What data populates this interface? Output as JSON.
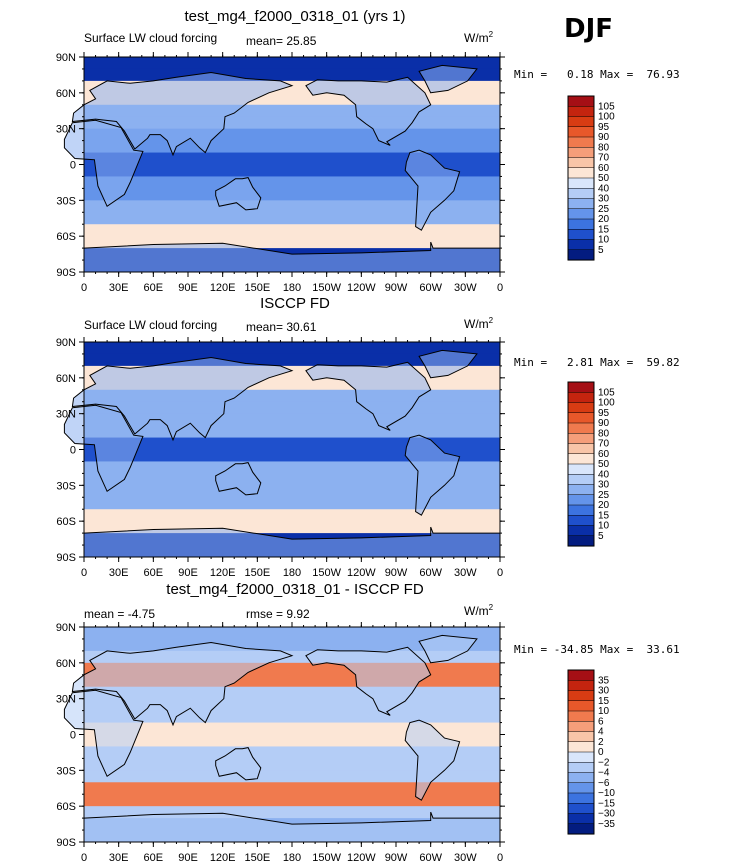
{
  "season": "DJF",
  "panels": [
    {
      "title": "test_mg4_f2000_0318_01 (yrs 1)",
      "left_label": "Surface LW cloud forcing",
      "stat1": "mean=  25.85",
      "stat2": "",
      "units": "W/m",
      "units_exp": "2",
      "minmax": "Min =   0.18 Max =  76.93",
      "colorbar": {
        "labels": [
          "105",
          "100",
          "95",
          "90",
          "80",
          "70",
          "60",
          "50",
          "40",
          "30",
          "25",
          "20",
          "15",
          "10",
          "5"
        ],
        "colors": [
          "#a50f15",
          "#c4240f",
          "#d83c13",
          "#e8582a",
          "#f07a4e",
          "#f59e7a",
          "#f8c5a8",
          "#fce6d6",
          "#d9e6fb",
          "#b4cdf6",
          "#8cb1f0",
          "#6494ea",
          "#3c73e0",
          "#1f50cc",
          "#0a2fa8",
          "#031c80"
        ]
      }
    },
    {
      "title": "ISCCP FD",
      "left_label": "Surface LW cloud forcing",
      "stat1": "mean=  30.61",
      "stat2": "",
      "units": "W/m",
      "units_exp": "2",
      "minmax": "Min =   2.81 Max =  59.82",
      "colorbar": {
        "labels": [
          "105",
          "100",
          "95",
          "90",
          "80",
          "70",
          "60",
          "50",
          "40",
          "30",
          "25",
          "20",
          "15",
          "10",
          "5"
        ],
        "colors": [
          "#a50f15",
          "#c4240f",
          "#d83c13",
          "#e8582a",
          "#f07a4e",
          "#f59e7a",
          "#f8c5a8",
          "#fce6d6",
          "#d9e6fb",
          "#b4cdf6",
          "#8cb1f0",
          "#6494ea",
          "#3c73e0",
          "#1f50cc",
          "#0a2fa8",
          "#031c80"
        ]
      }
    },
    {
      "title": "test_mg4_f2000_0318_01 - ISCCP FD",
      "left_label": "mean =  -4.75",
      "stat1": "",
      "stat2": "rmse =   9.92",
      "units": "W/m",
      "units_exp": "2",
      "minmax": "Min = -34.85 Max =  33.61",
      "colorbar": {
        "labels": [
          "35",
          "30",
          "15",
          "10",
          "6",
          "4",
          "2",
          "0",
          "−2",
          "−4",
          "−6",
          "−10",
          "−15",
          "−30",
          "−35"
        ],
        "colors": [
          "#a50f15",
          "#c4240f",
          "#d83c13",
          "#e8582a",
          "#f07a4e",
          "#f59e7a",
          "#f8c5a8",
          "#fce6d6",
          "#d9e6fb",
          "#b4cdf6",
          "#8cb1f0",
          "#6494ea",
          "#3c73e0",
          "#1f50cc",
          "#0a2fa8",
          "#031c80"
        ]
      }
    }
  ],
  "lat_ticks": [
    "90N",
    "60N",
    "30N",
    "0",
    "30S",
    "60S",
    "90S"
  ],
  "lon_ticks": [
    "0",
    "30E",
    "60E",
    "90E",
    "120E",
    "150E",
    "180",
    "150W",
    "120W",
    "90W",
    "60W",
    "30W",
    "0"
  ]
}
